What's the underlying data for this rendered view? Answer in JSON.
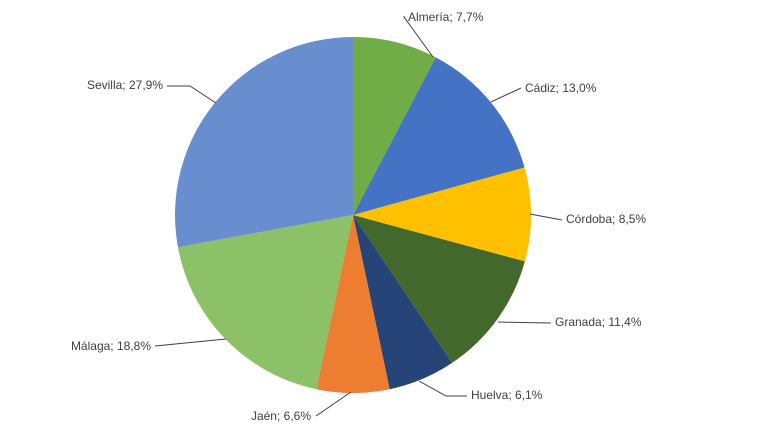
{
  "chart_data": {
    "type": "pie",
    "title": "",
    "start_angle_deg": 0,
    "direction": "clockwise",
    "legend": "none",
    "label_format": "{category}; {value}",
    "categories": [
      "Almería",
      "Cádiz",
      "Córdoba",
      "Granada",
      "Huelva",
      "Jaén",
      "Málaga",
      "Sevilla"
    ],
    "values": [
      7.7,
      13.0,
      8.5,
      11.4,
      6.1,
      6.6,
      18.8,
      27.9
    ],
    "value_labels": [
      "7,7%",
      "13,0%",
      "8,5%",
      "11,4%",
      "6,1%",
      "6,6%",
      "18,8%",
      "27,9%"
    ],
    "labels": [
      "Almería; 7,7%",
      "Cádiz; 13,0%",
      "Córdoba; 8,5%",
      "Granada; 11,4%",
      "Huelva; 6,1%",
      "Jaén; 6,6%",
      "Málaga; 18,8%",
      "Sevilla; 27,9%"
    ],
    "colors": [
      "#70AD47",
      "#4472C4",
      "#FFC000",
      "#43682B",
      "#264478",
      "#ED7D31",
      "#8CC168",
      "#698ED0"
    ]
  }
}
